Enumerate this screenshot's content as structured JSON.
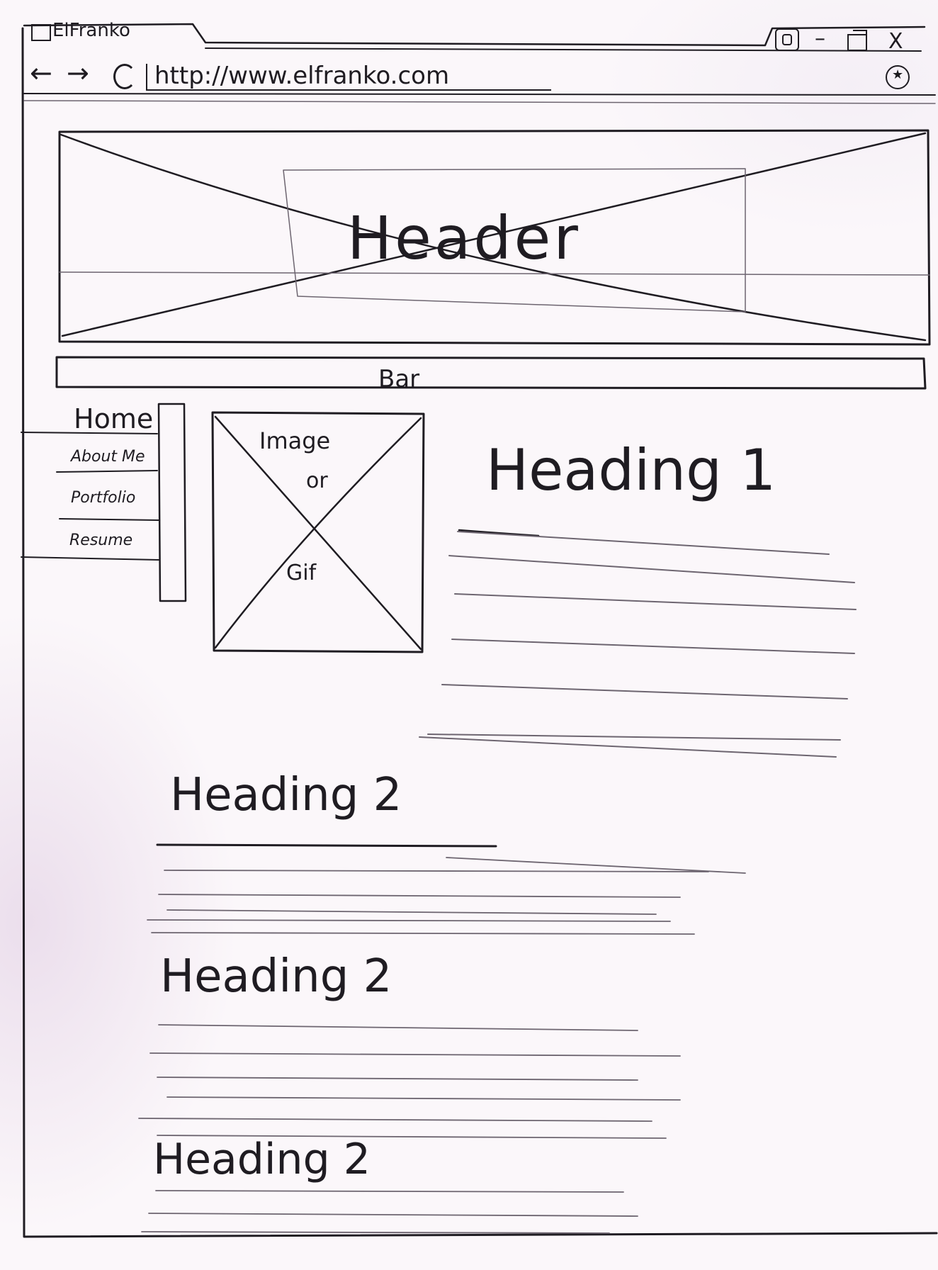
{
  "browser": {
    "tab_title": "ElFranko",
    "url": "http://www.elfranko.com",
    "controls": {
      "minimize": "–",
      "close": "X"
    }
  },
  "header": {
    "label": "Header"
  },
  "bar": {
    "label": "Bar"
  },
  "sidebar": {
    "items": [
      {
        "label": "Home"
      },
      {
        "label": "About Me"
      },
      {
        "label": "Portfolio"
      },
      {
        "label": "Resume"
      }
    ]
  },
  "media": {
    "line1": "Image",
    "line2": "or",
    "line3": "Gif"
  },
  "main": {
    "heading1": "Heading 1",
    "sections": [
      {
        "heading": "Heading 2"
      },
      {
        "heading": "Heading 2"
      },
      {
        "heading": "Heading 2"
      }
    ]
  }
}
